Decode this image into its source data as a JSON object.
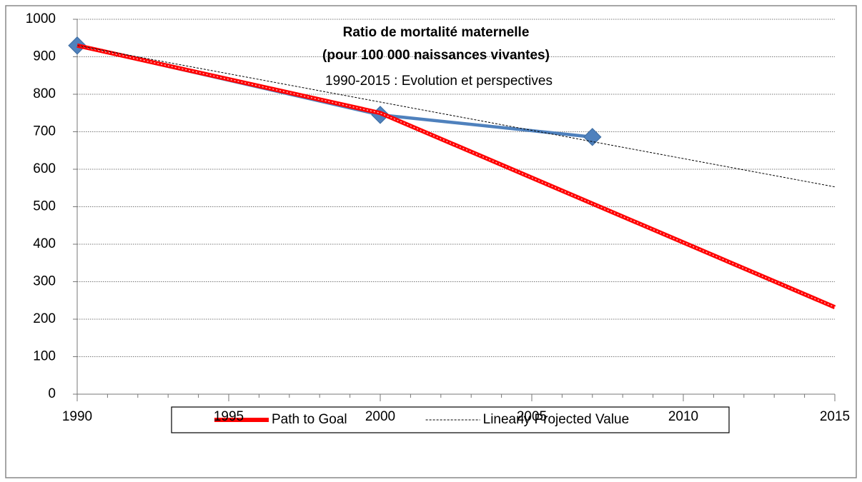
{
  "chart_data": {
    "type": "line",
    "title": [
      "Ratio de mortalité maternelle",
      "(pour 100 000 naissances vivantes)"
    ],
    "subtitle": "1990-2015 : Evolution et perspectives",
    "xlim": [
      1990,
      2015
    ],
    "xticks": [
      1990,
      1995,
      2000,
      2005,
      2010,
      2015
    ],
    "ylim": [
      0,
      1000
    ],
    "yticks": [
      0,
      100,
      200,
      300,
      400,
      500,
      600,
      700,
      800,
      900,
      1000
    ],
    "grid": true,
    "legend": "bottom",
    "series": [
      {
        "color": "#4f81bd",
        "style": "solid-markers",
        "x": [
          1990,
          2000,
          2007
        ],
        "values": [
          930,
          745,
          686
        ]
      },
      {
        "name": "Path to Goal",
        "color": "#ff0000",
        "style": "thick",
        "x": [
          1990,
          2000,
          2015
        ],
        "values": [
          930,
          750,
          232
        ]
      },
      {
        "name": "Linearly Projected Value",
        "color": "#000000",
        "style": "dashed",
        "x": [
          1990,
          2015
        ],
        "values": [
          930,
          553
        ]
      }
    ]
  }
}
